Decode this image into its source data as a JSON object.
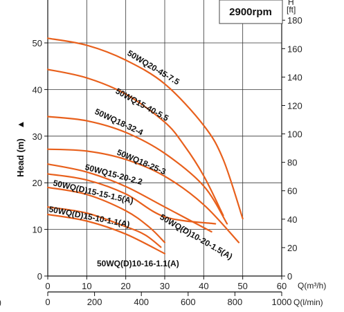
{
  "chart_data": {
    "type": "line",
    "badge": "2900rpm",
    "y_label": "Head (m)",
    "y_label_arrow": "▲",
    "axes": {
      "q_m3h": {
        "unit": "Q(m³/h)",
        "range": [
          0,
          60
        ],
        "ticks": [
          "0",
          "10",
          "20",
          "30",
          "40",
          "50",
          "60"
        ]
      },
      "q_lmin": {
        "unit": "Q(l/min)",
        "range": [
          0,
          1000
        ],
        "ticks": [
          "0",
          "200",
          "400",
          "600",
          "800",
          "1000"
        ]
      },
      "head_m": {
        "range": [
          0,
          50
        ],
        "ticks": [
          "0",
          "10",
          "20",
          "30",
          "40",
          "50"
        ]
      },
      "head_ft_unit_top": "H",
      "head_ft_unit": "[ft]",
      "head_ft": {
        "range": [
          0,
          180
        ],
        "ticks": [
          "0",
          "20",
          "40",
          "60",
          "80",
          "100",
          "120",
          "140",
          "160",
          "180"
        ]
      }
    },
    "grid": true,
    "series": [
      {
        "name": "50WQ20-45-7.5",
        "color": "#e8601c",
        "points": [
          [
            0,
            51
          ],
          [
            10,
            49.5
          ],
          [
            20,
            46.3
          ],
          [
            30,
            41.2
          ],
          [
            40,
            32.3
          ],
          [
            45,
            25
          ],
          [
            50,
            12.3
          ]
        ]
      },
      {
        "name": "50WQ15-40-5.5",
        "color": "#e8601c",
        "points": [
          [
            0,
            44.3
          ],
          [
            10,
            42.5
          ],
          [
            20,
            39
          ],
          [
            30,
            33
          ],
          [
            35,
            28
          ],
          [
            40,
            21.5
          ],
          [
            45,
            13
          ]
        ]
      },
      {
        "name": "50WQ18-32-4",
        "color": "#e8601c",
        "points": [
          [
            0,
            34.2
          ],
          [
            10,
            33.3
          ],
          [
            20,
            30.8
          ],
          [
            30,
            26.3
          ],
          [
            40,
            19.3
          ],
          [
            46,
            11.2
          ]
        ]
      },
      {
        "name": "50WQ18-25-3",
        "color": "#e8601c",
        "points": [
          [
            0,
            27.2
          ],
          [
            10,
            26.8
          ],
          [
            20,
            25
          ],
          [
            30,
            21.4
          ],
          [
            40,
            15.3
          ],
          [
            49,
            7.2
          ]
        ]
      },
      {
        "name": "50WQ(D)10-20-1.5(A)",
        "color": "#e8601c",
        "points": [
          [
            0,
            24
          ],
          [
            10,
            22.3
          ],
          [
            20,
            19.2
          ],
          [
            30,
            14.8
          ],
          [
            42,
            9.5
          ]
        ]
      },
      {
        "name": "50WQ15-20-2.2",
        "color": "#e8601c",
        "points": [
          [
            0,
            21.9
          ],
          [
            10,
            20.6
          ],
          [
            20,
            17.6
          ],
          [
            30,
            12.7
          ],
          [
            43,
            11.2
          ]
        ]
      },
      {
        "name": "50WQ(D)15-15-1.5(A)",
        "color": "#e8601c",
        "points": [
          [
            0,
            19
          ],
          [
            10,
            17.5
          ],
          [
            20,
            14
          ],
          [
            26,
            10.5
          ],
          [
            30,
            7.2
          ]
        ]
      },
      {
        "name": "50WQ(D)15-10-1.1(A)",
        "color": "#e8601c",
        "points": [
          [
            0,
            14.8
          ],
          [
            10,
            13.5
          ],
          [
            20,
            10.6
          ],
          [
            25,
            8.8
          ],
          [
            29,
            6.2
          ]
        ]
      },
      {
        "name": "50WQ(D)10-16-1.1(A)",
        "color": "#e8601c",
        "points": [
          [
            0,
            13.2
          ],
          [
            10,
            11.8
          ],
          [
            20,
            9
          ],
          [
            30,
            4.8
          ]
        ]
      }
    ],
    "labels": [
      {
        "text": "50WQ20-45-7.5"
      },
      {
        "text": "50WQ15-40-5.5"
      },
      {
        "text": "50WQ18-32-4"
      },
      {
        "text": "50WQ18-25-3"
      },
      {
        "text": "50WQ15-20-2.2"
      },
      {
        "text": "50WQ(D)15-15-1.5(A)"
      },
      {
        "text": "50WQ(D)10-20-1.5(A)"
      },
      {
        "text": "50WQ(D)15-10-1.1(A)"
      },
      {
        "text": "50WQ(D)10-16-1.1(A)"
      }
    ],
    "left_edge_char": ")"
  }
}
